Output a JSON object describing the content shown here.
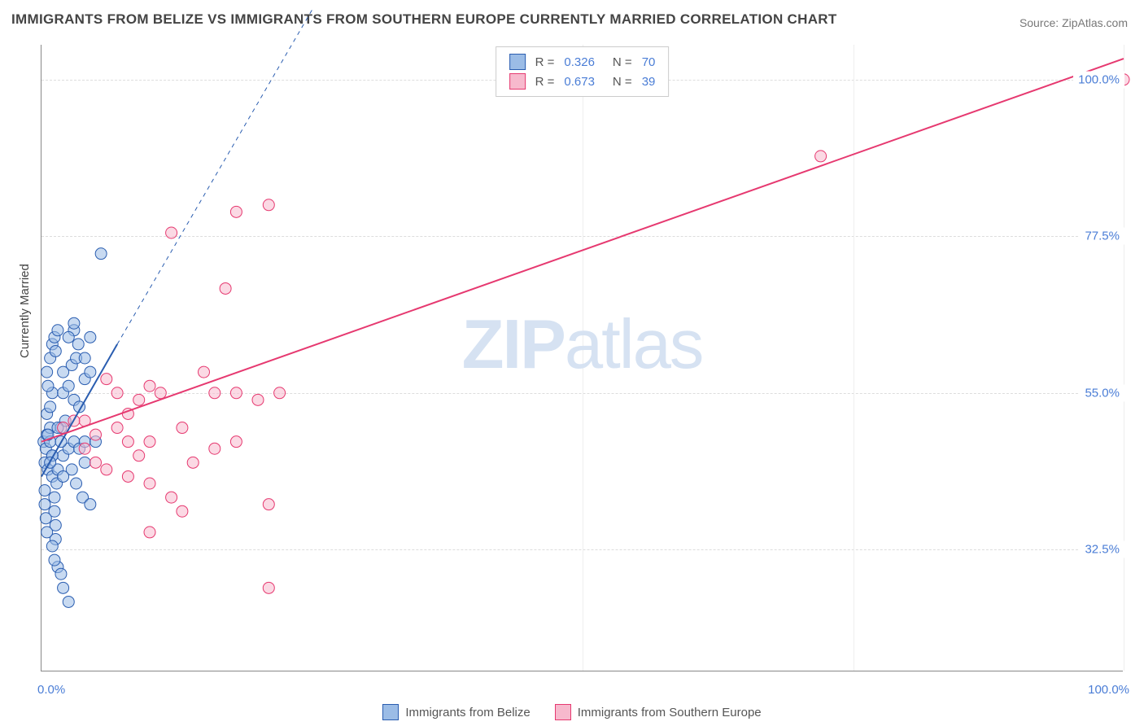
{
  "title": "IMMIGRANTS FROM BELIZE VS IMMIGRANTS FROM SOUTHERN EUROPE CURRENTLY MARRIED CORRELATION CHART",
  "source": "Source: ZipAtlas.com",
  "ylabel": "Currently Married",
  "watermark_bold": "ZIP",
  "watermark_light": "atlas",
  "chart": {
    "type": "scatter",
    "xlim": [
      0,
      100
    ],
    "ylim": [
      15,
      105
    ],
    "yticks": [
      {
        "v": 32.5,
        "label": "32.5%"
      },
      {
        "v": 55.0,
        "label": "55.0%"
      },
      {
        "v": 77.5,
        "label": "77.5%"
      },
      {
        "v": 100.0,
        "label": "100.0%"
      }
    ],
    "xticks": [
      {
        "v": 0,
        "label": "0.0%"
      },
      {
        "v": 50,
        "label": ""
      },
      {
        "v": 75,
        "label": ""
      },
      {
        "v": 100,
        "label": "100.0%"
      }
    ],
    "marker_radius": 7,
    "marker_opacity": 0.55,
    "grid_color": "#dddddd",
    "background_color": "#ffffff",
    "series": [
      {
        "name": "Immigrants from Belize",
        "color_stroke": "#2a5db0",
        "color_fill": "#9bbce6",
        "R": "0.326",
        "N": "70",
        "trend": {
          "x1": 0,
          "y1": 43,
          "x2": 7,
          "y2": 62,
          "dash_ext_x": 25,
          "dash_ext_y": 110,
          "color": "#2a5db0",
          "width": 2
        },
        "points": [
          [
            0.2,
            48
          ],
          [
            0.3,
            45
          ],
          [
            0.4,
            47
          ],
          [
            0.5,
            49
          ],
          [
            0.6,
            44
          ],
          [
            0.8,
            50
          ],
          [
            0.8,
            48
          ],
          [
            1.0,
            46
          ],
          [
            1.0,
            43
          ],
          [
            1.2,
            40
          ],
          [
            1.2,
            38
          ],
          [
            1.3,
            36
          ],
          [
            1.3,
            34
          ],
          [
            1.4,
            42
          ],
          [
            1.5,
            44
          ],
          [
            0.5,
            52
          ],
          [
            0.8,
            53
          ],
          [
            1.0,
            55
          ],
          [
            0.3,
            41
          ],
          [
            0.3,
            39
          ],
          [
            0.4,
            37
          ],
          [
            0.5,
            35
          ],
          [
            1.5,
            30
          ],
          [
            1.8,
            29
          ],
          [
            2.0,
            27
          ],
          [
            2.5,
            25
          ],
          [
            1.2,
            31
          ],
          [
            1.0,
            33
          ],
          [
            2.0,
            46
          ],
          [
            2.5,
            47
          ],
          [
            3.0,
            48
          ],
          [
            1.8,
            50
          ],
          [
            2.2,
            51
          ],
          [
            2.8,
            44
          ],
          [
            3.2,
            42
          ],
          [
            3.5,
            47
          ],
          [
            4.0,
            48
          ],
          [
            4.0,
            45
          ],
          [
            3.8,
            40
          ],
          [
            4.5,
            39
          ],
          [
            0.8,
            60
          ],
          [
            1.0,
            62
          ],
          [
            1.2,
            63
          ],
          [
            1.5,
            64
          ],
          [
            0.5,
            58
          ],
          [
            0.6,
            56
          ],
          [
            1.3,
            61
          ],
          [
            2.0,
            55
          ],
          [
            2.5,
            56
          ],
          [
            3.0,
            54
          ],
          [
            3.5,
            53
          ],
          [
            2.0,
            58
          ],
          [
            2.8,
            59
          ],
          [
            3.2,
            60
          ],
          [
            3.4,
            62
          ],
          [
            3.0,
            64
          ],
          [
            2.5,
            63
          ],
          [
            4.0,
            57
          ],
          [
            4.5,
            58
          ],
          [
            4.0,
            60
          ],
          [
            5.5,
            75
          ],
          [
            3.0,
            65
          ],
          [
            4.5,
            63
          ],
          [
            1.5,
            50
          ],
          [
            1.8,
            48
          ],
          [
            2.0,
            43
          ],
          [
            1.0,
            46
          ],
          [
            0.8,
            45
          ],
          [
            0.6,
            49
          ],
          [
            5.0,
            48
          ]
        ]
      },
      {
        "name": "Immigrants from Southern Europe",
        "color_stroke": "#e63970",
        "color_fill": "#f7b9cd",
        "R": "0.673",
        "N": "39",
        "trend": {
          "x1": 0,
          "y1": 48,
          "x2": 100,
          "y2": 103,
          "color": "#e63970",
          "width": 2
        },
        "points": [
          [
            100,
            100
          ],
          [
            72,
            89
          ],
          [
            12,
            78
          ],
          [
            18,
            81
          ],
          [
            21,
            82
          ],
          [
            17,
            70
          ],
          [
            15,
            58
          ],
          [
            16,
            55
          ],
          [
            18,
            55
          ],
          [
            20,
            54
          ],
          [
            22,
            55
          ],
          [
            10,
            56
          ],
          [
            11,
            55
          ],
          [
            13,
            50
          ],
          [
            16,
            47
          ],
          [
            18,
            48
          ],
          [
            14,
            45
          ],
          [
            8,
            52
          ],
          [
            9,
            54
          ],
          [
            7,
            55
          ],
          [
            6,
            57
          ],
          [
            7,
            50
          ],
          [
            8,
            48
          ],
          [
            10,
            48
          ],
          [
            9,
            46
          ],
          [
            5,
            49
          ],
          [
            4,
            51
          ],
          [
            4,
            47
          ],
          [
            5,
            45
          ],
          [
            6,
            44
          ],
          [
            8,
            43
          ],
          [
            10,
            42
          ],
          [
            12,
            40
          ],
          [
            13,
            38
          ],
          [
            21,
            39
          ],
          [
            10,
            35
          ],
          [
            21,
            27
          ],
          [
            2,
            50
          ],
          [
            3,
            51
          ]
        ]
      }
    ]
  },
  "legend_labels": {
    "R_label": "R =",
    "N_label": "N ="
  },
  "bottom_legend": [
    {
      "label": "Immigrants from Belize",
      "stroke": "#2a5db0",
      "fill": "#9bbce6"
    },
    {
      "label": "Immigrants from Southern Europe",
      "stroke": "#e63970",
      "fill": "#f7b9cd"
    }
  ]
}
